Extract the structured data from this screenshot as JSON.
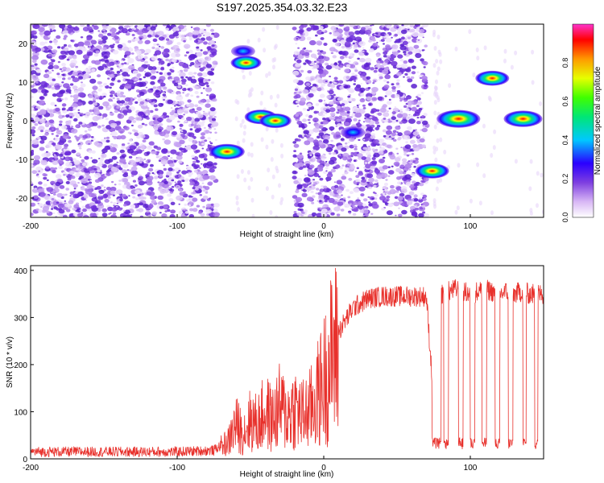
{
  "title": "S197.2025.354.03.32.E23",
  "chart_data": [
    {
      "type": "heatmap",
      "name": "spectrogram",
      "xlabel": "Height of straight line (km)",
      "ylabel": "Frequency (Hz)",
      "xlim": [
        -200,
        150
      ],
      "ylim": [
        -25,
        25
      ],
      "xticks": [
        -200,
        -100,
        0,
        100
      ],
      "yticks": [
        -20,
        -10,
        0,
        10,
        20
      ],
      "colorbar": {
        "label": "Normalized spectral amplitude",
        "range": [
          0,
          1
        ],
        "ticks": [
          0.0,
          0.2,
          0.4,
          0.6,
          0.8
        ],
        "tick_labels": [
          "0.0",
          "0.2",
          "0.4",
          "0.6",
          "0.8"
        ]
      },
      "regions": [
        {
          "x": [
            -200,
            -73
          ],
          "kind": "noise"
        },
        {
          "x": [
            -20,
            70
          ],
          "kind": "noise"
        }
      ],
      "features": [
        {
          "x": -66,
          "freq": -8,
          "amp": 0.6
        },
        {
          "x": -53,
          "freq": 15,
          "amp": 0.45
        },
        {
          "x": -55,
          "freq": 18,
          "amp": 0.25
        },
        {
          "x": -43,
          "freq": 1,
          "amp": 0.5
        },
        {
          "x": -33,
          "freq": 0,
          "amp": 0.5
        },
        {
          "x": 20,
          "freq": -3,
          "amp": 0.25
        },
        {
          "x": 74,
          "freq": -13,
          "amp": 0.55
        },
        {
          "x": 92,
          "freq": 0.5,
          "amp": 0.85
        },
        {
          "x": 115,
          "freq": 11,
          "amp": 0.55
        },
        {
          "x": 136,
          "freq": 0.5,
          "amp": 0.7
        }
      ]
    },
    {
      "type": "line",
      "name": "snr",
      "xlabel": "Height of straight line (km)",
      "ylabel": "SNR (10 * v/v)",
      "xlim": [
        -200,
        150
      ],
      "ylim": [
        0,
        410
      ],
      "xticks": [
        -200,
        -100,
        0,
        100
      ],
      "yticks": [
        0,
        100,
        200,
        300,
        400
      ],
      "series": [
        {
          "name": "SNR",
          "color": "#e8312c",
          "x": [
            -200,
            -150,
            -100,
            -75,
            -65,
            -60,
            -55,
            -50,
            -45,
            -40,
            -35,
            -30,
            -25,
            -20,
            -15,
            -10,
            -5,
            0,
            5,
            10,
            20,
            30,
            40,
            50,
            60,
            70,
            77,
            80,
            85,
            90,
            95,
            100,
            105,
            110,
            115,
            120,
            125,
            130,
            135,
            140,
            145,
            150
          ],
          "y": [
            15,
            15,
            15,
            18,
            40,
            80,
            60,
            90,
            80,
            110,
            90,
            120,
            100,
            120,
            100,
            110,
            140,
            180,
            230,
            270,
            320,
            340,
            345,
            345,
            345,
            345,
            40,
            350,
            355,
            360,
            355,
            350,
            355,
            360,
            355,
            350,
            355,
            350,
            355,
            350,
            350,
            350
          ]
        }
      ],
      "dropouts": [
        {
          "x": [
            74,
            80
          ],
          "y": 30
        },
        {
          "x": [
            82,
            85
          ],
          "y": 30
        },
        {
          "x": [
            92,
            95
          ],
          "y": 30
        },
        {
          "x": [
            100,
            103
          ],
          "y": 30
        },
        {
          "x": [
            108,
            111
          ],
          "y": 30
        },
        {
          "x": [
            117,
            120
          ],
          "y": 30
        },
        {
          "x": [
            126,
            129
          ],
          "y": 30
        },
        {
          "x": [
            136,
            138
          ],
          "y": 30
        },
        {
          "x": [
            144,
            146
          ],
          "y": 30
        }
      ]
    }
  ]
}
